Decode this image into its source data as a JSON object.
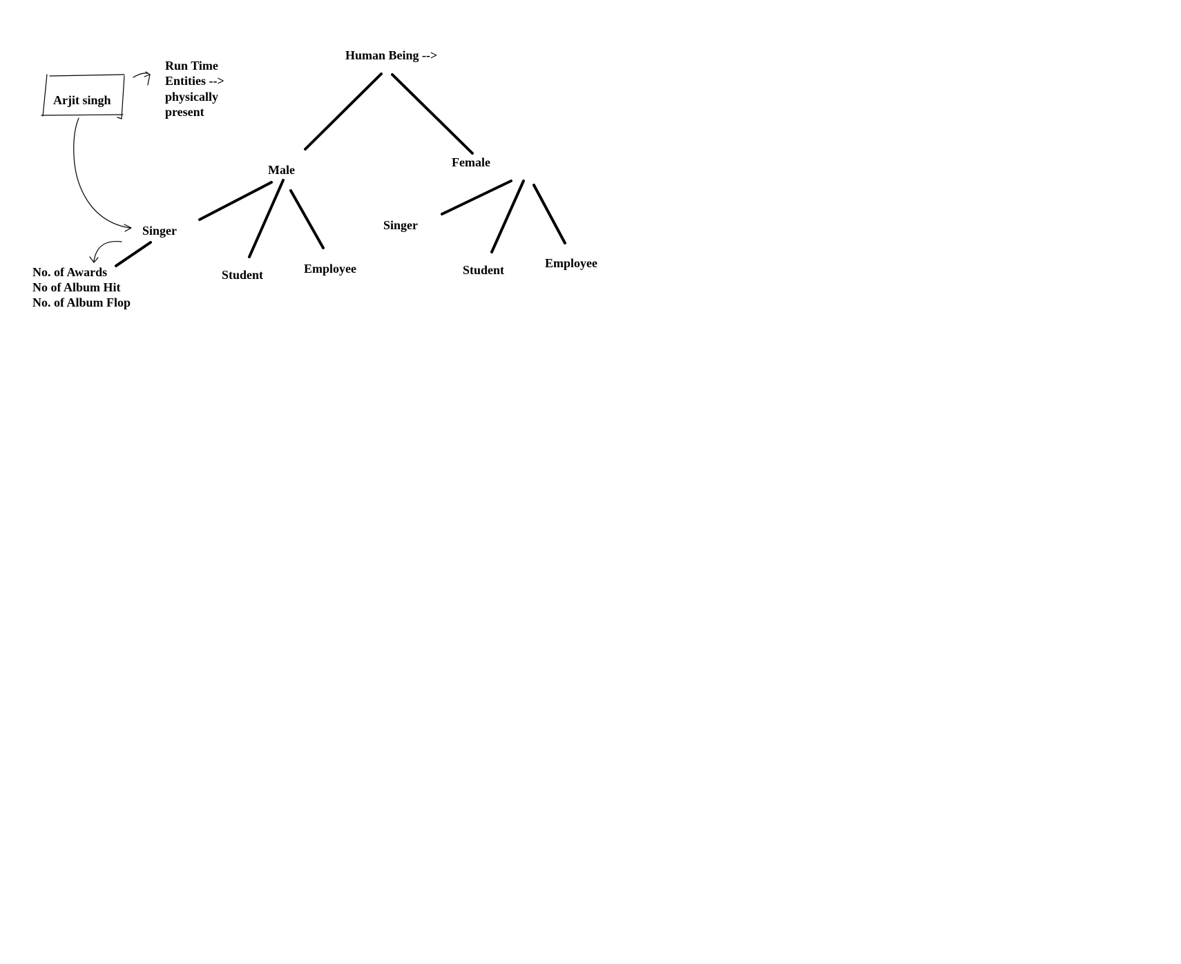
{
  "colors": {
    "background": "#ffffff",
    "ink": "#000000"
  },
  "diagram": {
    "root": "Human Being -->",
    "male": {
      "label": "Male",
      "children": [
        "Singer",
        "Student",
        "Employee"
      ]
    },
    "female": {
      "label": "Female",
      "children": [
        "Singer",
        "Student",
        "Employee"
      ]
    },
    "instance_box": "Arjit singh",
    "runtime_note": [
      "Run Time",
      "Entities -->",
      "physically",
      "present"
    ],
    "singer_attributes": [
      "No. of Awards",
      "No of Album Hit",
      "No. of Album Flop"
    ]
  }
}
